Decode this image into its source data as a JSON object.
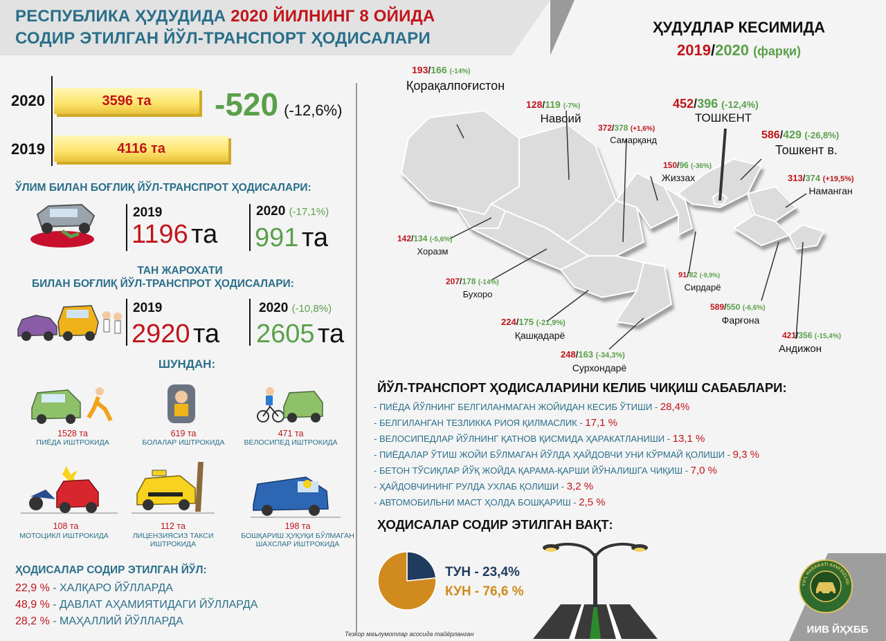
{
  "title": {
    "line1_prefix": "РЕСПУБЛИКА ҲУДУДИДА ",
    "line1_highlight": "2020 ЙИЛНИНГ 8 ОЙИДА",
    "line2": "СОДИР ЭТИЛГАН ЙЎЛ-ТРАНСПОРТ ҲОДИСАЛАРИ"
  },
  "regions_title": {
    "line1": "ҲУДУДЛАР КЕСИМИДА",
    "year_a": "2019",
    "slash": "/",
    "year_b": "2020",
    "note": "(фарқи)"
  },
  "totals": {
    "rows": [
      {
        "year": "2020",
        "value": "3596 та"
      },
      {
        "year": "2019",
        "value": "4116 та"
      }
    ],
    "diff": "-520",
    "diff_pct": "(-12,6%)"
  },
  "fatal": {
    "heading": "ЎЛИМ БИЛАН БОҒЛИҚ ЙЎЛ-ТРАНСПРОТ ҲОДИСАЛАРИ:",
    "y2019": "2019",
    "v2019": "1196",
    "y2020": "2020",
    "pct2020": "(-17,1%)",
    "v2020": "991",
    "unit": "та"
  },
  "injury": {
    "heading1": "ТАН ЖАРОХАТИ",
    "heading2": "БИЛАН БОҒЛИҚ ЙЎЛ-ТРАНСПРОТ ҲОДИСАЛАРИ:",
    "y2019": "2019",
    "v2019": "2920",
    "y2020": "2020",
    "pct2020": "(-10,8%)",
    "v2020": "2605",
    "unit": "та"
  },
  "shundan": {
    "heading": "ШУНДАН:",
    "items": [
      {
        "value": "1528 та",
        "caption": "ПИЁДА ИШТРОКИДА",
        "icon": "pedestrian-car-icon"
      },
      {
        "value": "619 та",
        "caption": "БОЛАЛАР ИШТРОКИДА",
        "icon": "child-seat-icon"
      },
      {
        "value": "471 та",
        "caption": "ВЕЛОСИПЕД ИШТРОКИДА",
        "icon": "bicycle-car-icon"
      },
      {
        "value": "108 та",
        "caption": "МОТОЦИКЛ ИШТРОКИДА",
        "icon": "motorcycle-crash-icon"
      },
      {
        "value": "112 та",
        "caption": "ЛИЦЕНЗИЯСИЗ ТАКСИ ИШТРОКИДА",
        "icon": "taxi-crash-icon"
      },
      {
        "value": "198 та",
        "caption": "БОШҚАРИШ ҲУҚУҚИ БЎЛМАГАН ШАХСЛАР ИШТРОКИДА",
        "icon": "van-driver-icon"
      }
    ]
  },
  "roads": {
    "heading": "ҲОДИСАЛАР СОДИР ЭТИЛГАН ЙЎЛ:",
    "items": [
      {
        "pct": "22,9 %",
        "label": " - ХАЛҚАРО ЙЎЛЛАРДА"
      },
      {
        "pct": "48,9 %",
        "label": " - ДАВЛАТ АҲАМИЯТИДАГИ ЙЎЛЛАРДА"
      },
      {
        "pct": "28,2 %",
        "label": " - МАҲАЛЛИЙ ЙЎЛЛАРДА"
      }
    ]
  },
  "footnote": "Тезкор маълумотлар асосида тайёрланган",
  "regions": [
    {
      "id": "qoraqalpogiston",
      "v2019": "193",
      "v2020": "166",
      "pct": "(-14%)",
      "name": "Қорақалпоғистон"
    },
    {
      "id": "navoiy",
      "v2019": "128",
      "v2020": "119",
      "pct": "(-7%)",
      "name": "Навоий"
    },
    {
      "id": "samarqand",
      "v2019": "372",
      "v2020": "378",
      "pct": "(+1,6%)",
      "name": "Самарқанд"
    },
    {
      "id": "toshkent",
      "v2019": "452",
      "v2020": "396",
      "pct": "(-12,4%)",
      "name": "ТОШКЕНТ"
    },
    {
      "id": "toshkent-city",
      "v2019": "586",
      "v2020": "429",
      "pct": "(-26,8%)",
      "name": "Тошкент в."
    },
    {
      "id": "jizzax",
      "v2019": "150",
      "v2020": "96",
      "pct": "(-36%)",
      "name": "Жиззах"
    },
    {
      "id": "namangan",
      "v2019": "313",
      "v2020": "374",
      "pct": "(+19,5%)",
      "name": "Наманган"
    },
    {
      "id": "xorazm",
      "v2019": "142",
      "v2020": "134",
      "pct": "(-5,6%)",
      "name": "Хоразм"
    },
    {
      "id": "buxoro",
      "v2019": "207",
      "v2020": "178",
      "pct": "(-14%)",
      "name": "Бухоро"
    },
    {
      "id": "sirdaryo",
      "v2019": "91",
      "v2020": "82",
      "pct": "(-9,9%)",
      "name": "Сирдарё"
    },
    {
      "id": "fargona",
      "v2019": "589",
      "v2020": "550",
      "pct": "(-6,6%)",
      "name": "Фарғона"
    },
    {
      "id": "qashqadaryo",
      "v2019": "224",
      "v2020": "175",
      "pct": "(-21,9%)",
      "name": "Қашқадарё"
    },
    {
      "id": "andijon",
      "v2019": "421",
      "v2020": "356",
      "pct": "(-15,4%)",
      "name": "Андижон"
    },
    {
      "id": "surxondaryo",
      "v2019": "248",
      "v2020": "163",
      "pct": "(-34,3%)",
      "name": "Сурхондарё"
    }
  ],
  "causes": {
    "heading": "ЙЎЛ-ТРАНСПОРТ ҲОДИСАЛАРИНИ КЕЛИБ ЧИҚИШ САБАБЛАРИ:",
    "items": [
      {
        "text": "- ПИЁДА ЙЎЛНИНГ БЕЛГИЛАНМАГАН ЖОЙИДАН КЕСИБ ЎТИШИ - ",
        "pct": "28,4%"
      },
      {
        "text": "- БЕЛГИЛАНГАН ТЕЗЛИККА РИОЯ ҚИЛМАСЛИК - ",
        "pct": "17,1 %"
      },
      {
        "text": "- ВЕЛОСИПЕДЛАР ЙЎЛНИНГ ҚАТНОВ ҚИСМИДА ҲАРАКАТЛАНИШИ - ",
        "pct": "13,1 %"
      },
      {
        "text": "- ПИЁДАЛАР ЎТИШ ЖОЙИ БЎЛМАГАН ЙЎЛДА ҲАЙДОВЧИ УНИ КЎРМАЙ ҚОЛИШИ - ",
        "pct": "9,3 %"
      },
      {
        "text": "- БЕТОН ТЎСИҚЛАР ЙЎҚ ЖОЙДА ҚАРАМА-ҚАРШИ ЙЎНАЛИШГА ЧИҚИШ - ",
        "pct": "7,0 %"
      },
      {
        "text": "- ҲАЙДОВЧИНИНГ РУЛДА УХЛАБ ҚОЛИШИ - ",
        "pct": "3,2 %"
      },
      {
        "text": "- АВТОМОБИЛЬНИ МАСТ ҲОЛДА БОШҚАРИШ - ",
        "pct": "2,5 %"
      }
    ]
  },
  "time": {
    "heading": "ҲОДИСАЛАР СОДИР ЭТИЛГАН ВАҚТ:",
    "night_label": "ТУН - 23,4%",
    "day_label": "КУН - 76,6 %"
  },
  "chart_data": {
    "type": "pie",
    "categories": [
      "ТУН",
      "КУН"
    ],
    "values": [
      23.4,
      76.6
    ],
    "colors": [
      "#1f3b5e",
      "#d08a1e"
    ],
    "title": ""
  },
  "logo": {
    "caption": "ИИВ ЙҲХББ",
    "ring_text": "YO'L HARAKATI XAVFSIZLIGI"
  },
  "colors": {
    "red": "#c0141a",
    "green": "#5aa04a",
    "teal": "#2a6f8a",
    "navy": "#1f3b5e",
    "orange": "#d08a1e"
  }
}
